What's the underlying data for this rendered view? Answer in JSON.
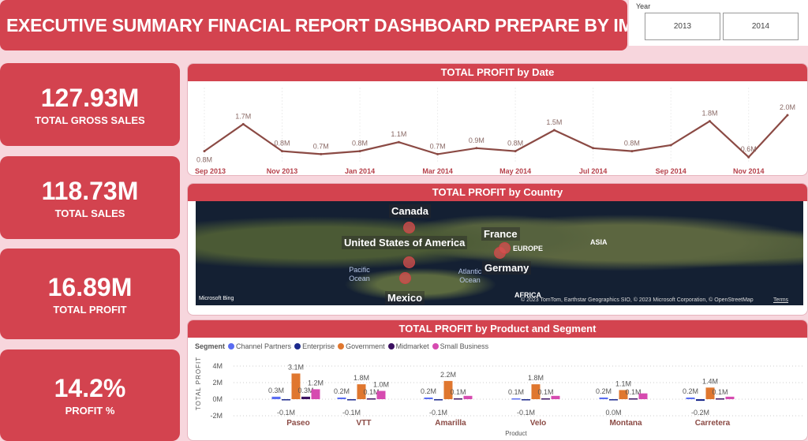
{
  "header": {
    "title": "EXECUTIVE SUMMARY FINACIAL REPORT DASHBOARD PREPARE BY IME BEN"
  },
  "year_slicer": {
    "label": "Year",
    "options": [
      "2013",
      "2014"
    ]
  },
  "kpis": [
    {
      "value": "127.93M",
      "label": "TOTAL GROSS SALES"
    },
    {
      "value": "118.73M",
      "label": "TOTAL SALES"
    },
    {
      "value": "16.89M",
      "label": "TOTAL PROFIT"
    },
    {
      "value": "14.2%",
      "label": "PROFIT %"
    }
  ],
  "map": {
    "title": "TOTAL PROFIT by Country",
    "countries": [
      "Canada",
      "United States of America",
      "France",
      "Germany",
      "Mexico"
    ],
    "regions": [
      "EUROPE",
      "ASIA",
      "AFRICA"
    ],
    "oceans": [
      "Pacific Ocean",
      "Atlantic Ocean"
    ],
    "logo": "Microsoft Bing",
    "attribution": "© 2023 TomTom, Earthstar Geographics SIO, © 2023 Microsoft Corporation, © OpenStreetMap",
    "terms": "Terms"
  },
  "chart_data": [
    {
      "type": "line",
      "title": "TOTAL PROFIT by Date",
      "xlabel": "Date",
      "ylabel": "",
      "color": "#8b4a44",
      "x": [
        "Sep 2013",
        "Oct 2013",
        "Nov 2013",
        "Dec 2013",
        "Jan 2014",
        "Feb 2014",
        "Mar 2014",
        "Apr 2014",
        "May 2014",
        "Jun 2014",
        "Jul 2014",
        "Aug 2014",
        "Sep 2014",
        "Oct 2014",
        "Nov 2014",
        "Dec 2014"
      ],
      "values": [
        0.8,
        1.7,
        0.8,
        0.7,
        0.8,
        1.1,
        0.7,
        0.9,
        0.8,
        1.5,
        0.9,
        0.8,
        1.0,
        1.8,
        0.6,
        2.0
      ],
      "labels": [
        "0.8M",
        "1.7M",
        "0.8M",
        "0.7M",
        "0.8M",
        "1.1M",
        "0.7M",
        "0.9M",
        "0.8M",
        "1.5M",
        "",
        "0.8M",
        "",
        "1.8M",
        "0.6M",
        "2.0M"
      ],
      "xticks": [
        "Sep 2013",
        "Nov 2013",
        "Jan 2014",
        "Mar 2014",
        "May 2014",
        "Jul 2014",
        "Sep 2014",
        "Nov 2014"
      ]
    },
    {
      "type": "bar",
      "title": "TOTAL PROFIT by Product and Segment",
      "xlabel": "Product",
      "ylabel": "TOTAL PROFIT",
      "legend_title": "Segment",
      "ylim": [
        -2,
        4
      ],
      "yticks": [
        "4M",
        "2M",
        "0M",
        "-2M"
      ],
      "categories": [
        "Paseo",
        "VTT",
        "Amarilla",
        "Velo",
        "Montana",
        "Carretera"
      ],
      "series": [
        {
          "name": "Channel Partners",
          "color": "#5a6cf2",
          "values": [
            0.3,
            0.2,
            0.2,
            0.1,
            0.2,
            0.2
          ],
          "labels": [
            "0.3M",
            "0.2M",
            "0.2M",
            "0.1M",
            "0.2M",
            "0.2M"
          ]
        },
        {
          "name": "Enterprise",
          "color": "#1c2a8c",
          "values": [
            -0.1,
            -0.1,
            -0.1,
            -0.1,
            0.0,
            -0.2
          ],
          "labels": [
            "-0.1M",
            "-0.1M",
            "-0.1M",
            "-0.1M",
            "0.0M",
            "-0.2M"
          ]
        },
        {
          "name": "Government",
          "color": "#e0772f",
          "values": [
            3.1,
            1.8,
            2.2,
            1.8,
            1.1,
            1.4
          ],
          "labels": [
            "3.1M",
            "1.8M",
            "2.2M",
            "1.8M",
            "1.1M",
            "1.4M"
          ]
        },
        {
          "name": "Midmarket",
          "color": "#3a1060",
          "values": [
            0.3,
            0.1,
            0.1,
            0.1,
            0.1,
            0.1
          ],
          "labels": [
            "0.3M",
            "0.1M",
            "0.1M",
            "0.1M",
            "0.1M",
            "0.1M"
          ]
        },
        {
          "name": "Small Business",
          "color": "#d64bb0",
          "values": [
            1.2,
            1.0,
            0.4,
            0.4,
            0.7,
            0.3
          ],
          "labels": [
            "1.2M",
            "1.0M",
            "",
            "",
            "",
            ""
          ]
        }
      ]
    }
  ]
}
